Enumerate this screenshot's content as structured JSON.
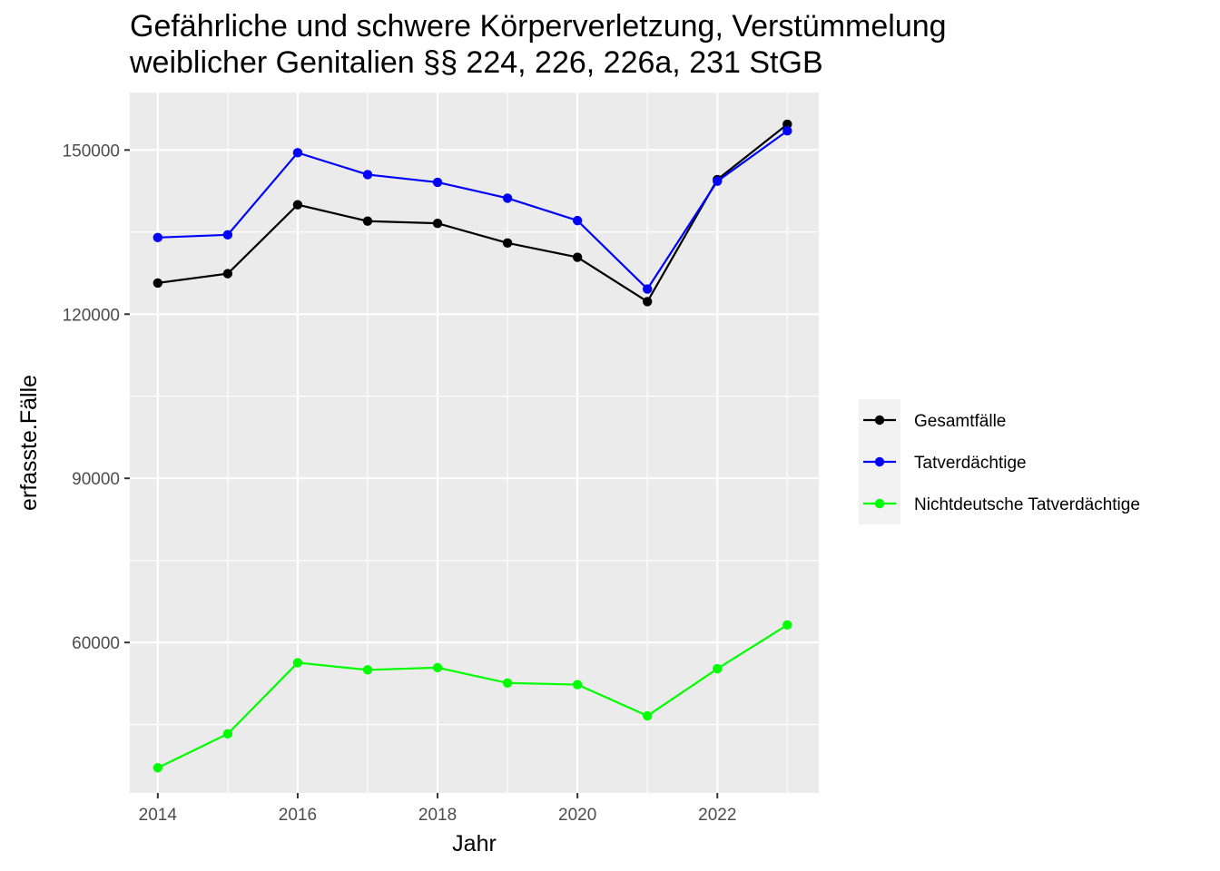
{
  "chart_data": {
    "type": "line",
    "title": "Gefährliche und schwere Körperverletzung, Verstümmelung weiblicher Genitalien §§ 224, 226, 226a, 231 StGB",
    "title_lines": [
      "Gefährliche und schwere Körperverletzung, Verstümmelung",
      "weiblicher Genitalien §§ 224, 226, 226a, 231 StGB"
    ],
    "xlabel": "Jahr",
    "ylabel": "erfasste.Fälle",
    "x": [
      2014,
      2015,
      2016,
      2017,
      2018,
      2019,
      2020,
      2021,
      2022,
      2023
    ],
    "xlim": [
      2013.6,
      2023.45
    ],
    "ylim": [
      32500,
      160500
    ],
    "x_ticks": [
      2014,
      2016,
      2018,
      2020,
      2022
    ],
    "x_tick_labels": [
      "2014",
      "2016",
      "2018",
      "2020",
      "2022"
    ],
    "y_ticks": [
      60000,
      90000,
      120000,
      150000
    ],
    "y_tick_labels": [
      "60000",
      "90000",
      "120000",
      "150000"
    ],
    "grid": true,
    "panel_background": "#ebebeb",
    "grid_color": "#ffffff",
    "legend_position": "right",
    "series": [
      {
        "name": "Gesamtfälle",
        "color": "#000000",
        "values": [
          125700,
          127400,
          140000,
          137000,
          136600,
          133000,
          130400,
          122300,
          144600,
          154700
        ]
      },
      {
        "name": "Tatverdächtige",
        "color": "#0000ff",
        "values": [
          134000,
          134500,
          149500,
          145500,
          144100,
          141200,
          137100,
          124600,
          144300,
          153500
        ]
      },
      {
        "name": "Nichtdeutsche Tatverdächtige",
        "color": "#00ff00",
        "values": [
          37100,
          43300,
          56300,
          55000,
          55400,
          52600,
          52300,
          46600,
          55200,
          63200
        ]
      }
    ]
  }
}
